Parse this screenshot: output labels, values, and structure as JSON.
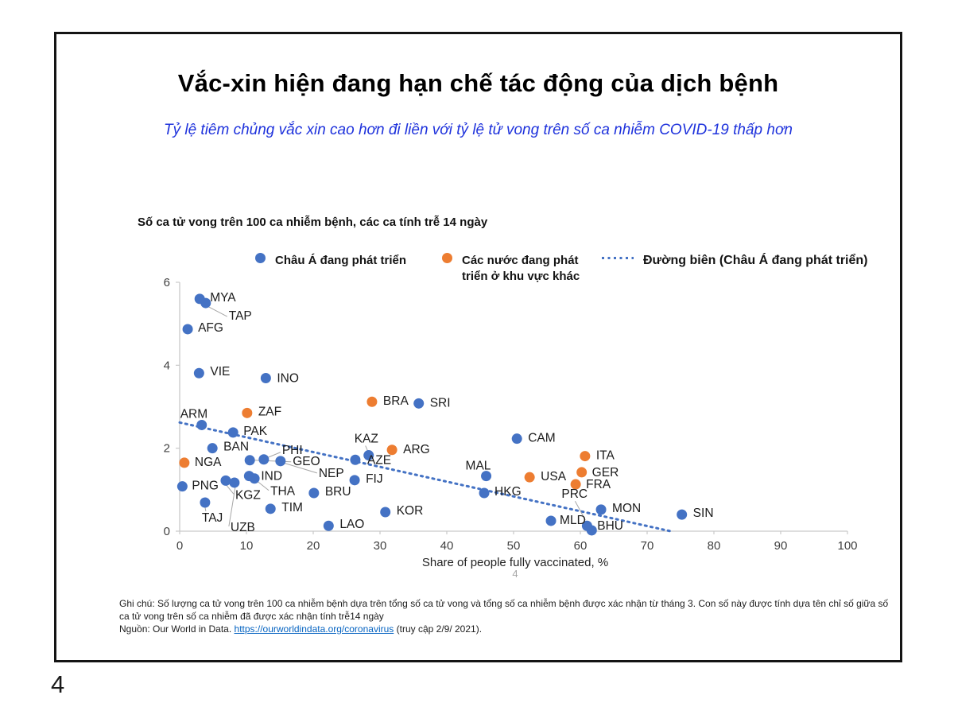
{
  "slide": {
    "title": "Vắc-xin hiện đang hạn chế tác động của dịch bệnh",
    "subtitle": "Tỷ lệ tiêm chủng vắc xin cao hơn đi liền với tỷ lệ tử vong trên số ca nhiễm COVID-19 thấp hơn",
    "page_number": "4",
    "inner_page_number": "4",
    "footnote_text": "Ghi chú: Số lượng ca tử vong trên 100 ca nhiễm bệnh dựa trên tổng số ca tử vong và tổng số ca nhiễm bệnh được xác nhận từ tháng 3. Con số này được tính dựa tên chỉ số giữa số ca tử vong trên số ca nhiễm đã được xác nhận tính trễ14 ngày",
    "source_prefix": "Nguồn: Our World in Data. ",
    "source_link": "https://ourworldindata.org/coronavirus",
    "source_suffix": "  (truy cập 2/9/ 2021)."
  },
  "colors": {
    "asia_blue": "#4472C4",
    "other_orange": "#ED7D31",
    "frontier": "#4472C4",
    "axis": "#c9c9c9",
    "leader": "#a6a6a6",
    "subtitle_blue": "#1e32dc",
    "link_blue": "#0563C1"
  },
  "chart_data": {
    "type": "scatter",
    "title": "Số ca tử vong trên 100 ca nhiễm bệnh, các ca tính trễ 14 ngày",
    "xlabel": "Share of people fully vaccinated, %",
    "ylabel": "",
    "xlim": [
      0,
      100
    ],
    "ylim": [
      0,
      6
    ],
    "x_ticks": [
      0,
      10,
      20,
      30,
      40,
      50,
      60,
      70,
      80,
      90,
      100
    ],
    "y_ticks": [
      0,
      2,
      4,
      6
    ],
    "grid": false,
    "legend_position": "top",
    "legend": [
      {
        "label": "Châu Á đang phát triển",
        "color": "#4472C4",
        "marker": "dot"
      },
      {
        "label": "Các nước đang phát triển ở khu vực khác",
        "color": "#ED7D31",
        "marker": "dot"
      },
      {
        "label": "Đường biên (Châu Á đang phát triển)",
        "color": "#4472C4",
        "marker": "dotted-line"
      }
    ],
    "frontier_line": {
      "x1": 0,
      "y1": 2.62,
      "x2": 73.5,
      "y2": 0
    },
    "series": [
      {
        "name": "Châu Á đang phát triển",
        "color": "#4472C4",
        "points": [
          {
            "c": "MYA",
            "x": 3.0,
            "y": 5.6,
            "dx": 13,
            "dy": -9
          },
          {
            "c": "TAP",
            "x": 3.9,
            "y": 5.5,
            "dx": 29,
            "dy": 9,
            "ldr": [
              4,
              5,
              27,
              17
            ]
          },
          {
            "c": "AFG",
            "x": 1.2,
            "y": 4.87,
            "dx": 13,
            "dy": -9
          },
          {
            "c": "VIE",
            "x": 2.9,
            "y": 3.81,
            "dx": 14,
            "dy": -9
          },
          {
            "c": "INO",
            "x": 12.9,
            "y": 3.69,
            "dx": 14,
            "dy": -7
          },
          {
            "c": "ARM",
            "x": 3.3,
            "y": 2.56,
            "dx": -27,
            "dy": -21
          },
          {
            "c": "PAK",
            "x": 8.0,
            "y": 2.38,
            "dx": 13,
            "dy": -9
          },
          {
            "c": "BAN",
            "x": 4.9,
            "y": 2.0,
            "dx": 14,
            "dy": -9
          },
          {
            "c": "PNG",
            "x": 0.4,
            "y": 1.08,
            "dx": 12,
            "dy": -8
          },
          {
            "c": "GEO",
            "x": 10.5,
            "y": 1.71,
            "dx": 54,
            "dy": -6,
            "ldr": [
              52,
              2,
              5,
              0
            ]
          },
          {
            "c": "PHI",
            "x": 12.6,
            "y": 1.73,
            "dx": 23,
            "dy": -19,
            "ldr": [
              21,
              -9,
              4,
              -2
            ]
          },
          {
            "c": "NEP",
            "x": 15.1,
            "y": 1.69,
            "dx": 48,
            "dy": 8,
            "ldr": [
              46,
              15,
              3,
              2
            ]
          },
          {
            "c": "KAZ",
            "x": 28.3,
            "y": 1.83,
            "dx": -18,
            "dy": -28,
            "ldr": [
              -4,
              -12,
              -1,
              -5
            ]
          },
          {
            "c": "AZE",
            "x": 26.3,
            "y": 1.72,
            "dx": 15,
            "dy": -7
          },
          {
            "c": "IND",
            "x": 10.4,
            "y": 1.33,
            "dx": 15,
            "dy": -7
          },
          {
            "c": "THA",
            "x": 11.2,
            "y": 1.27,
            "dx": 20,
            "dy": 9,
            "ldr": [
              18,
              15,
              3,
              3
            ]
          },
          {
            "c": "KGZ",
            "x": 6.9,
            "y": 1.22,
            "dx": 12,
            "dy": 11,
            "ldr": [
              10,
              17,
              1,
              6
            ]
          },
          {
            "c": "UZB",
            "x": 8.2,
            "y": 1.17,
            "dx": -5,
            "dy": 49,
            "ldr": [
              -7,
              55,
              1,
              6
            ]
          },
          {
            "c": "TAJ",
            "x": 3.8,
            "y": 0.69,
            "dx": -4,
            "dy": 12,
            "ldr": [
              1,
              11,
              0,
              6
            ]
          },
          {
            "c": "TIM",
            "x": 13.6,
            "y": 0.54,
            "dx": 14,
            "dy": -9
          },
          {
            "c": "BRU",
            "x": 20.1,
            "y": 0.92,
            "dx": 14,
            "dy": -9
          },
          {
            "c": "FIJ",
            "x": 26.2,
            "y": 1.23,
            "dx": 14,
            "dy": -9
          },
          {
            "c": "LAO",
            "x": 22.3,
            "y": 0.13,
            "dx": 14,
            "dy": -9
          },
          {
            "c": "KOR",
            "x": 30.8,
            "y": 0.46,
            "dx": 14,
            "dy": -9
          },
          {
            "c": "SRI",
            "x": 35.8,
            "y": 3.08,
            "dx": 14,
            "dy": -8
          },
          {
            "c": "MAL",
            "x": 45.9,
            "y": 1.33,
            "dx": -26,
            "dy": -20
          },
          {
            "c": "HKG",
            "x": 45.6,
            "y": 0.92,
            "dx": 13,
            "dy": -9
          },
          {
            "c": "CAM",
            "x": 50.5,
            "y": 2.23,
            "dx": 14,
            "dy": -8
          },
          {
            "c": "PRC",
            "x": 61.0,
            "y": 0.13,
            "dx": -32,
            "dy": -47,
            "ldr": [
              -15,
              -31,
              -2,
              -7
            ]
          },
          {
            "c": "BHU",
            "x": 61.7,
            "y": 0.02,
            "dx": 7,
            "dy": -13
          },
          {
            "c": "MLD",
            "x": 55.6,
            "y": 0.25,
            "dx": 11,
            "dy": -8
          },
          {
            "c": "MON",
            "x": 63.1,
            "y": 0.52,
            "dx": 14,
            "dy": -9
          },
          {
            "c": "SIN",
            "x": 75.2,
            "y": 0.4,
            "dx": 14,
            "dy": -9
          }
        ]
      },
      {
        "name": "Các nước đang phát triển ở khu vực khác",
        "color": "#ED7D31",
        "points": [
          {
            "c": "ZAF",
            "x": 10.1,
            "y": 2.85,
            "dx": 14,
            "dy": -9
          },
          {
            "c": "NGA",
            "x": 0.7,
            "y": 1.65,
            "dx": 13,
            "dy": -8
          },
          {
            "c": "BRA",
            "x": 28.8,
            "y": 3.12,
            "dx": 14,
            "dy": -8
          },
          {
            "c": "ARG",
            "x": 31.8,
            "y": 1.96,
            "dx": 14,
            "dy": -8
          },
          {
            "c": "USA",
            "x": 52.4,
            "y": 1.3,
            "dx": 14,
            "dy": -8
          },
          {
            "c": "ITA",
            "x": 60.7,
            "y": 1.81,
            "dx": 14,
            "dy": -8
          },
          {
            "c": "GER",
            "x": 60.2,
            "y": 1.42,
            "dx": 13,
            "dy": -7
          },
          {
            "c": "FRA",
            "x": 59.3,
            "y": 1.13,
            "dx": 13,
            "dy": -7
          }
        ]
      }
    ]
  }
}
